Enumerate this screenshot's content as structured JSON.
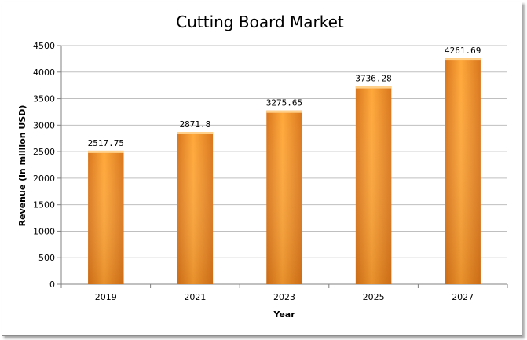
{
  "chart_data": {
    "type": "bar",
    "title": "Cutting Board Market",
    "xlabel": "Year",
    "ylabel": "Revenue (in million USD)",
    "categories": [
      "2019",
      "2021",
      "2023",
      "2025",
      "2027"
    ],
    "values": [
      2517.75,
      2871.8,
      3275.65,
      3736.28,
      4261.69
    ],
    "data_labels": [
      "2517.75",
      "2871.8",
      "3275.65",
      "3736.28",
      "4261.69"
    ],
    "ylim": [
      0,
      4500
    ],
    "yticks": [
      0,
      500,
      1000,
      1500,
      2000,
      2500,
      3000,
      3500,
      4000,
      4500
    ],
    "grid": true,
    "legend": "none",
    "colors": {
      "bar_light": "#ffa83a",
      "bar_dark": "#e07a1e",
      "grid": "#bfbfbf",
      "axis": "#808080"
    }
  }
}
